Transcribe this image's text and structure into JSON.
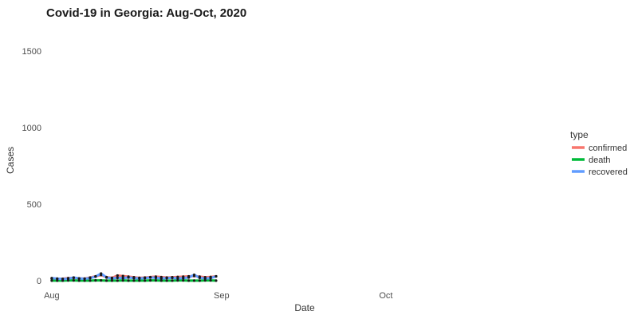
{
  "chart_data": {
    "type": "line",
    "title": "Covid-19 in Georgia: Aug-Oct, 2020",
    "xlabel": "Date",
    "ylabel": "Cases",
    "x_ticks": [
      "Aug",
      "Sep",
      "Oct"
    ],
    "x_tick_dates": [
      "2020-08-01",
      "2020-09-01",
      "2020-10-01"
    ],
    "xlim": [
      "2020-07-31",
      "2020-10-31"
    ],
    "y_ticks": [
      0,
      500,
      1000,
      1500
    ],
    "ylim": [
      -30,
      1650
    ],
    "grid": false,
    "legend": {
      "title": "type",
      "position": "right"
    },
    "x": [
      "2020-08-01",
      "2020-08-02",
      "2020-08-03",
      "2020-08-04",
      "2020-08-05",
      "2020-08-06",
      "2020-08-07",
      "2020-08-08",
      "2020-08-09",
      "2020-08-10",
      "2020-08-11",
      "2020-08-12",
      "2020-08-13",
      "2020-08-14",
      "2020-08-15",
      "2020-08-16",
      "2020-08-17",
      "2020-08-18",
      "2020-08-19",
      "2020-08-20",
      "2020-08-21",
      "2020-08-22",
      "2020-08-23",
      "2020-08-24",
      "2020-08-25",
      "2020-08-26",
      "2020-08-27",
      "2020-08-28",
      "2020-08-29",
      "2020-08-30",
      "2020-08-31"
    ],
    "series": [
      {
        "name": "confirmed",
        "color": "#F8766D",
        "values": [
          15,
          12,
          14,
          18,
          20,
          16,
          15,
          22,
          30,
          38,
          25,
          20,
          35,
          32,
          28,
          24,
          20,
          22,
          25,
          28,
          25,
          22,
          24,
          26,
          28,
          30,
          32,
          28,
          24,
          26,
          30
        ]
      },
      {
        "name": "death",
        "color": "#00BA38",
        "values": [
          2,
          2,
          2,
          3,
          3,
          2,
          2,
          2,
          3,
          3,
          2,
          2,
          2,
          3,
          2,
          2,
          2,
          2,
          3,
          3,
          2,
          2,
          2,
          3,
          3,
          2,
          2,
          2,
          3,
          3,
          2
        ]
      },
      {
        "name": "recovered",
        "color": "#619CFF",
        "values": [
          18,
          15,
          12,
          14,
          22,
          16,
          14,
          18,
          28,
          48,
          22,
          16,
          20,
          18,
          22,
          18,
          16,
          18,
          22,
          20,
          16,
          18,
          20,
          16,
          18,
          22,
          40,
          20,
          16,
          18,
          30
        ]
      }
    ]
  }
}
